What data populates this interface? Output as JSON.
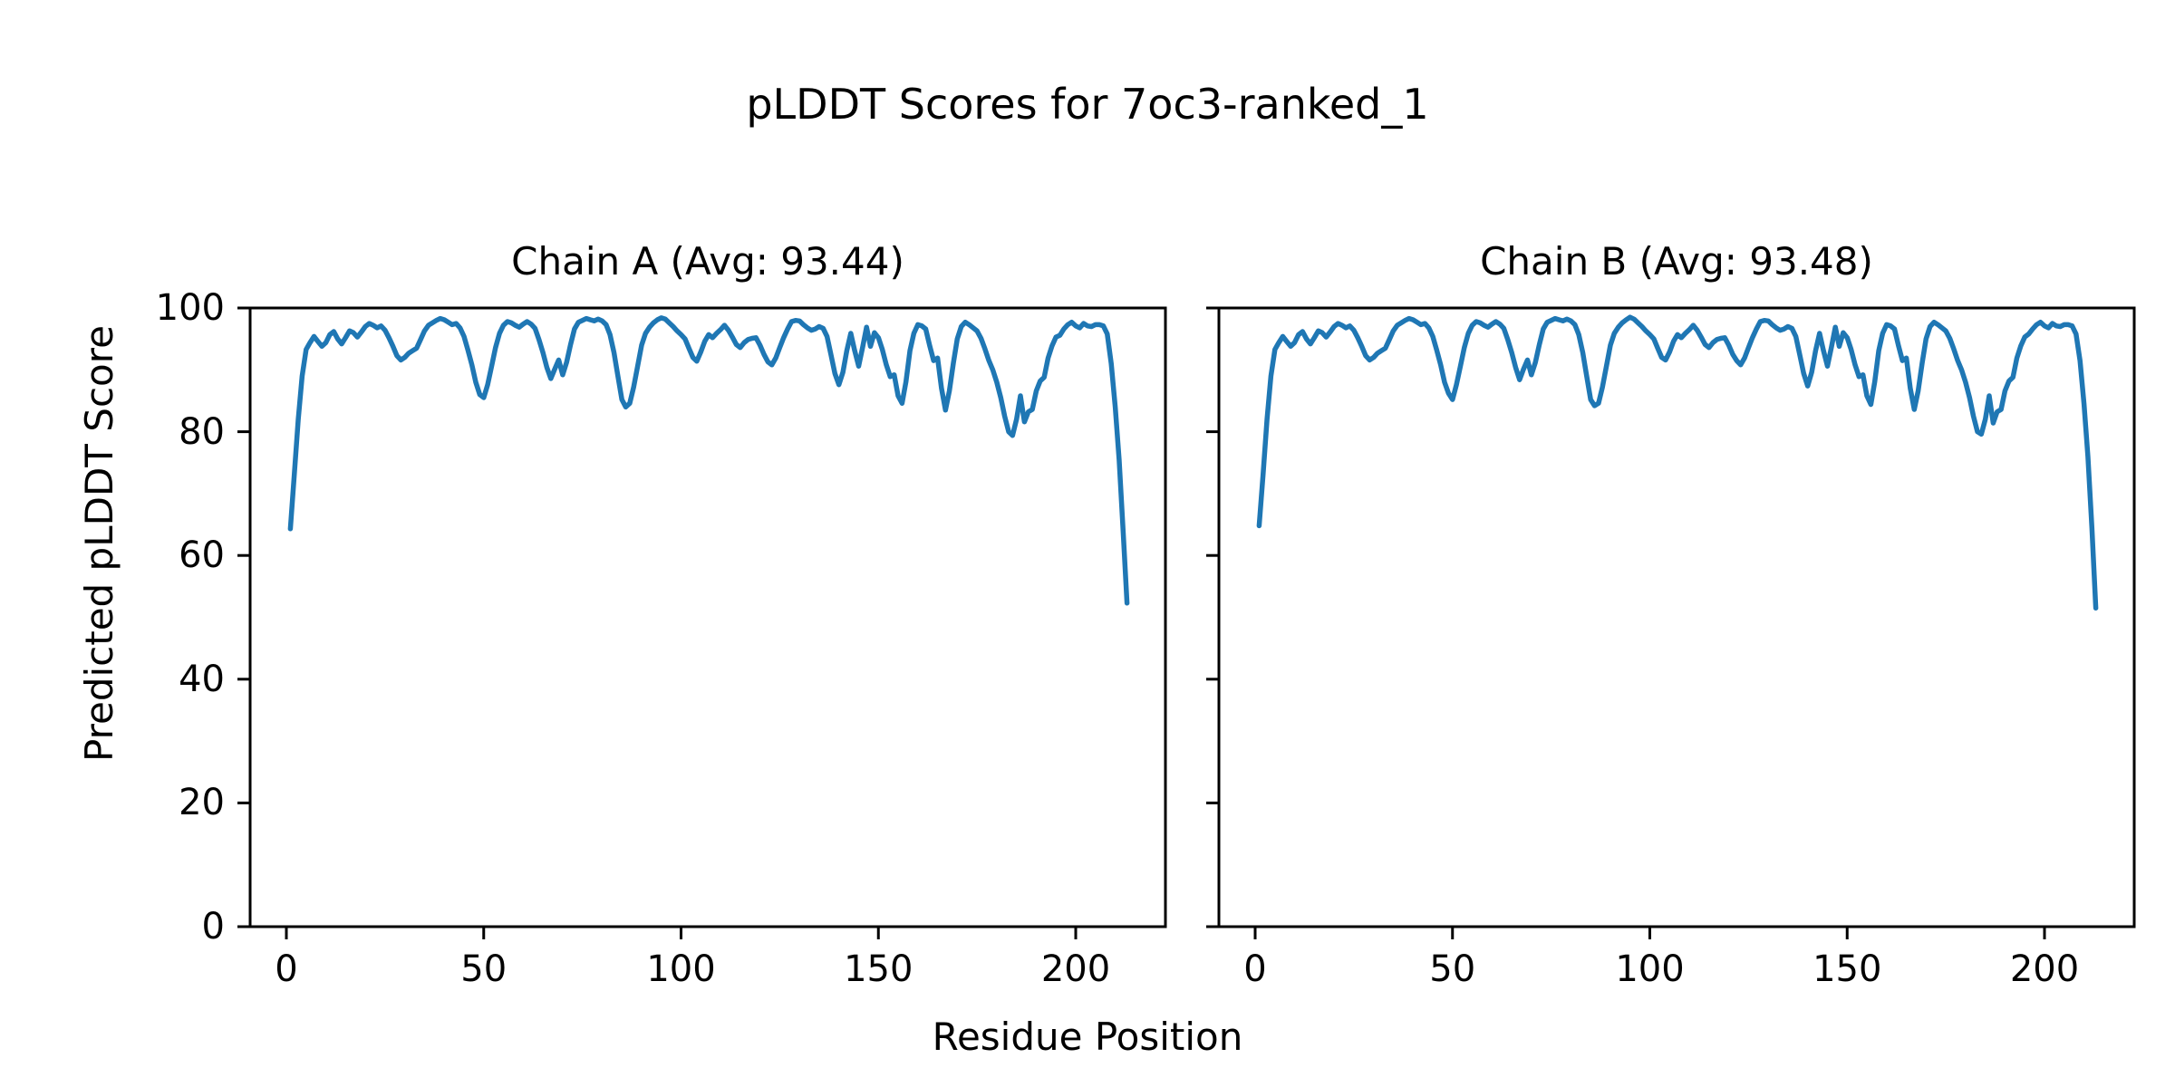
{
  "figure": {
    "suptitle": "pLDDT Scores for 7oc3-ranked_1"
  },
  "chart_data": {
    "type": "line",
    "suptitle": "pLDDT Scores for 7oc3-ranked_1",
    "xlabel": "Residue Position",
    "ylabel": "Predicted pLDDT Score",
    "line_color": "#1f77b4",
    "axis_color": "#000000",
    "x_ticks": [
      0,
      50,
      100,
      150,
      200
    ],
    "y_ticks": [
      0,
      20,
      40,
      60,
      80,
      100
    ],
    "ylim": [
      0,
      100
    ],
    "xlim": [
      -10.65,
      223.65
    ],
    "x_start": 1,
    "x_step": 1,
    "grid": false,
    "legend": "none",
    "subplots": [
      {
        "title": "Chain A (Avg: 93.44)",
        "avg": 93.44,
        "values": [
          64.3,
          73.0,
          82.0,
          89.0,
          93.3,
          94.4,
          95.4,
          94.6,
          93.8,
          94.4,
          95.7,
          96.2,
          95.0,
          94.2,
          95.2,
          96.3,
          96.0,
          95.3,
          96.1,
          97.0,
          97.5,
          97.2,
          96.8,
          97.1,
          96.4,
          95.2,
          93.8,
          92.3,
          91.6,
          92.0,
          92.7,
          93.1,
          93.5,
          94.9,
          96.3,
          97.2,
          97.6,
          98.0,
          98.3,
          98.1,
          97.7,
          97.3,
          97.5,
          96.8,
          95.4,
          93.2,
          90.8,
          88.0,
          86.0,
          85.5,
          87.6,
          90.6,
          93.6,
          95.9,
          97.2,
          97.8,
          97.6,
          97.2,
          96.9,
          97.4,
          97.8,
          97.4,
          96.7,
          94.9,
          92.8,
          90.4,
          88.6,
          90.1,
          91.6,
          89.2,
          91.2,
          94.1,
          96.6,
          97.7,
          98.0,
          98.3,
          98.1,
          97.9,
          98.2,
          97.9,
          97.3,
          95.7,
          92.8,
          89.0,
          85.2,
          84.0,
          84.6,
          87.2,
          90.6,
          94.0,
          95.9,
          96.9,
          97.6,
          98.1,
          98.4,
          98.2,
          97.6,
          97.0,
          96.3,
          95.7,
          95.0,
          93.5,
          92.0,
          91.4,
          92.9,
          94.6,
          95.7,
          95.2,
          95.9,
          96.5,
          97.2,
          96.4,
          95.3,
          94.1,
          93.6,
          94.4,
          94.9,
          95.1,
          95.2,
          94.0,
          92.5,
          91.3,
          90.8,
          91.9,
          93.6,
          95.2,
          96.6,
          97.8,
          98.0,
          97.9,
          97.3,
          96.8,
          96.4,
          96.6,
          97.0,
          96.7,
          95.4,
          92.4,
          89.4,
          87.6,
          89.6,
          93.1,
          95.9,
          93.1,
          90.6,
          93.6,
          96.9,
          93.8,
          96.0,
          95.2,
          93.3,
          90.8,
          88.9,
          89.2,
          85.8,
          84.6,
          88.1,
          93.1,
          95.9,
          97.3,
          97.1,
          96.6,
          93.9,
          91.5,
          91.9,
          87.0,
          83.5,
          86.6,
          91.1,
          95.0,
          97.0,
          97.7,
          97.3,
          96.8,
          96.3,
          95.1,
          93.4,
          91.5,
          90.0,
          88.0,
          85.5,
          82.5,
          80.0,
          79.4,
          82.0,
          85.8,
          81.6,
          83.2,
          83.6,
          86.6,
          88.2,
          88.8,
          91.9,
          93.9,
          95.3,
          95.6,
          96.6,
          97.3,
          97.7,
          97.1,
          96.8,
          97.5,
          97.1,
          97.0,
          97.3,
          97.3,
          97.1,
          95.8,
          91.0,
          84.0,
          75.5,
          64.0,
          52.3
        ]
      },
      {
        "title": "Chain B (Avg: 93.48)",
        "avg": 93.48,
        "values": [
          64.8,
          73.0,
          82.0,
          89.0,
          93.3,
          94.4,
          95.4,
          94.6,
          93.8,
          94.4,
          95.7,
          96.2,
          95.0,
          94.2,
          95.2,
          96.3,
          96.0,
          95.3,
          96.1,
          97.0,
          97.5,
          97.2,
          96.8,
          97.1,
          96.4,
          95.2,
          93.8,
          92.3,
          91.6,
          92.0,
          92.7,
          93.1,
          93.5,
          94.9,
          96.3,
          97.2,
          97.6,
          98.0,
          98.3,
          98.1,
          97.7,
          97.3,
          97.5,
          96.8,
          95.4,
          93.2,
          90.8,
          88.0,
          86.2,
          85.2,
          87.6,
          90.6,
          93.6,
          95.9,
          97.2,
          97.8,
          97.6,
          97.2,
          96.9,
          97.4,
          97.8,
          97.4,
          96.7,
          94.9,
          92.8,
          90.4,
          88.4,
          90.1,
          91.6,
          89.2,
          91.2,
          94.1,
          96.6,
          97.7,
          98.0,
          98.3,
          98.1,
          97.9,
          98.2,
          97.9,
          97.3,
          95.7,
          92.8,
          89.0,
          85.2,
          84.2,
          84.6,
          87.2,
          90.6,
          94.0,
          95.9,
          96.9,
          97.6,
          98.1,
          98.5,
          98.2,
          97.6,
          97.0,
          96.3,
          95.7,
          95.0,
          93.5,
          92.0,
          91.6,
          92.9,
          94.6,
          95.7,
          95.2,
          95.9,
          96.5,
          97.2,
          96.4,
          95.3,
          94.1,
          93.6,
          94.4,
          94.9,
          95.1,
          95.2,
          94.0,
          92.5,
          91.5,
          90.8,
          91.9,
          93.6,
          95.2,
          96.6,
          97.8,
          98.0,
          97.9,
          97.3,
          96.8,
          96.4,
          96.6,
          97.0,
          96.7,
          95.4,
          92.4,
          89.4,
          87.4,
          89.6,
          93.1,
          95.9,
          93.1,
          90.6,
          93.6,
          96.9,
          93.8,
          96.0,
          95.2,
          93.3,
          90.8,
          88.9,
          89.2,
          85.8,
          84.4,
          88.1,
          93.1,
          95.9,
          97.3,
          97.1,
          96.6,
          93.9,
          91.5,
          91.9,
          87.0,
          83.6,
          86.6,
          91.1,
          95.0,
          97.0,
          97.7,
          97.3,
          96.8,
          96.3,
          95.1,
          93.4,
          91.5,
          90.0,
          88.0,
          85.5,
          82.5,
          80.0,
          79.6,
          82.0,
          85.8,
          81.4,
          83.2,
          83.6,
          86.6,
          88.2,
          88.8,
          91.9,
          93.9,
          95.3,
          95.8,
          96.6,
          97.3,
          97.7,
          97.1,
          96.8,
          97.5,
          97.1,
          97.0,
          97.3,
          97.3,
          97.1,
          95.8,
          91.5,
          84.5,
          76.0,
          64.5,
          51.5
        ]
      }
    ]
  }
}
